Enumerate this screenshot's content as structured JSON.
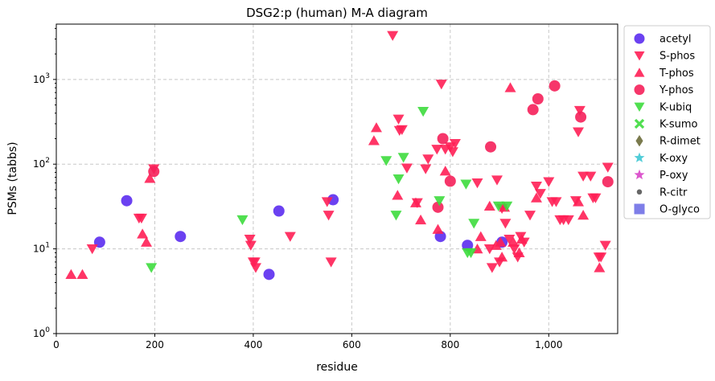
{
  "chart_data": {
    "type": "scatter",
    "title": "DSG2:p (human) M-A diagram",
    "xlabel": "residue",
    "ylabel": "PSMs (tabbs)",
    "xlim": [
      0,
      1140
    ],
    "ylim": [
      1,
      4500
    ],
    "yscale": "log",
    "grid": true,
    "legend_position": "outside-right",
    "x_ticks": [
      0,
      200,
      400,
      600,
      800,
      1000
    ],
    "x_tick_labels": [
      "0",
      "200",
      "400",
      "600",
      "800",
      "1,000"
    ],
    "y_ticks": [
      1,
      10,
      100,
      1000
    ],
    "y_tick_labels": [
      "10^0",
      "10^1",
      "10^2",
      "10^3"
    ],
    "series": [
      {
        "name": "acetyl",
        "marker": "circle",
        "color": "#5b2cf0",
        "points": [
          [
            88,
            12
          ],
          [
            143,
            37
          ],
          [
            252,
            14
          ],
          [
            432,
            5
          ],
          [
            452,
            28
          ],
          [
            562,
            38
          ],
          [
            780,
            14
          ],
          [
            835,
            11
          ],
          [
            905,
            12
          ]
        ]
      },
      {
        "name": "S-phos",
        "marker": "triangle-down",
        "color": "#ff1f55",
        "points": [
          [
            73,
            10
          ],
          [
            168,
            23
          ],
          [
            173,
            23
          ],
          [
            198,
            88
          ],
          [
            393,
            13
          ],
          [
            395,
            11
          ],
          [
            400,
            7
          ],
          [
            403,
            7
          ],
          [
            405,
            6
          ],
          [
            475,
            14
          ],
          [
            550,
            36
          ],
          [
            553,
            25
          ],
          [
            558,
            7
          ],
          [
            683,
            3300
          ],
          [
            695,
            340
          ],
          [
            697,
            250
          ],
          [
            702,
            255
          ],
          [
            712,
            90
          ],
          [
            733,
            35
          ],
          [
            750,
            88
          ],
          [
            755,
            115
          ],
          [
            773,
            150
          ],
          [
            782,
            880
          ],
          [
            790,
            150
          ],
          [
            800,
            160
          ],
          [
            805,
            140
          ],
          [
            810,
            175
          ],
          [
            855,
            60
          ],
          [
            880,
            10
          ],
          [
            885,
            6
          ],
          [
            895,
            65
          ],
          [
            900,
            7
          ],
          [
            905,
            30
          ],
          [
            912,
            20
          ],
          [
            920,
            13
          ],
          [
            930,
            10
          ],
          [
            937,
            8
          ],
          [
            943,
            14
          ],
          [
            950,
            12
          ],
          [
            962,
            25
          ],
          [
            975,
            55
          ],
          [
            983,
            45
          ],
          [
            1000,
            62
          ],
          [
            1007,
            36
          ],
          [
            1015,
            36
          ],
          [
            1023,
            22
          ],
          [
            1030,
            22
          ],
          [
            1040,
            22
          ],
          [
            1055,
            37
          ],
          [
            1060,
            240
          ],
          [
            1063,
            430
          ],
          [
            1070,
            72
          ],
          [
            1085,
            72
          ],
          [
            1090,
            40
          ],
          [
            1095,
            40
          ],
          [
            1102,
            8
          ],
          [
            1106,
            8
          ],
          [
            1115,
            11
          ],
          [
            1120,
            92
          ]
        ]
      },
      {
        "name": "T-phos",
        "marker": "triangle-up",
        "color": "#ff1f55",
        "points": [
          [
            30,
            5
          ],
          [
            53,
            5
          ],
          [
            175,
            15
          ],
          [
            183,
            12
          ],
          [
            190,
            68
          ],
          [
            645,
            190
          ],
          [
            650,
            270
          ],
          [
            693,
            43
          ],
          [
            730,
            35
          ],
          [
            740,
            22
          ],
          [
            775,
            17
          ],
          [
            790,
            83
          ],
          [
            855,
            10
          ],
          [
            862,
            14
          ],
          [
            880,
            32
          ],
          [
            893,
            11
          ],
          [
            902,
            12
          ],
          [
            905,
            8
          ],
          [
            910,
            31
          ],
          [
            922,
            800
          ],
          [
            928,
            12
          ],
          [
            940,
            9
          ],
          [
            945,
            13
          ],
          [
            975,
            40
          ],
          [
            1060,
            36
          ],
          [
            1070,
            25
          ],
          [
            1103,
            6
          ]
        ]
      },
      {
        "name": "Y-phos",
        "marker": "circle",
        "color": "#f5205a",
        "points": [
          [
            198,
            82
          ],
          [
            775,
            31
          ],
          [
            785,
            200
          ],
          [
            800,
            63
          ],
          [
            882,
            160
          ],
          [
            968,
            440
          ],
          [
            978,
            590
          ],
          [
            1012,
            840
          ],
          [
            1065,
            360
          ],
          [
            1120,
            62
          ]
        ]
      },
      {
        "name": "K-ubiq",
        "marker": "triangle-down",
        "color": "#3ddc3d",
        "points": [
          [
            193,
            6
          ],
          [
            378,
            22
          ],
          [
            670,
            110
          ],
          [
            690,
            25
          ],
          [
            695,
            67
          ],
          [
            705,
            120
          ],
          [
            745,
            420
          ],
          [
            778,
            37
          ],
          [
            832,
            58
          ],
          [
            835,
            9
          ],
          [
            842,
            9
          ],
          [
            848,
            20
          ],
          [
            898,
            32
          ],
          [
            915,
            32
          ]
        ]
      },
      {
        "name": "K-sumo",
        "marker": "x",
        "color": "#3ddc3d",
        "points": []
      },
      {
        "name": "R-dimet",
        "marker": "diamond",
        "color": "#6b6b3a",
        "points": []
      },
      {
        "name": "K-oxy",
        "marker": "star",
        "color": "#3fc8d4",
        "points": []
      },
      {
        "name": "P-oxy",
        "marker": "star",
        "color": "#d845c8",
        "points": []
      },
      {
        "name": "R-citr",
        "marker": "dot",
        "color": "#555555",
        "points": []
      },
      {
        "name": "O-glyco",
        "marker": "square",
        "color": "#7070e6",
        "points": []
      }
    ]
  }
}
